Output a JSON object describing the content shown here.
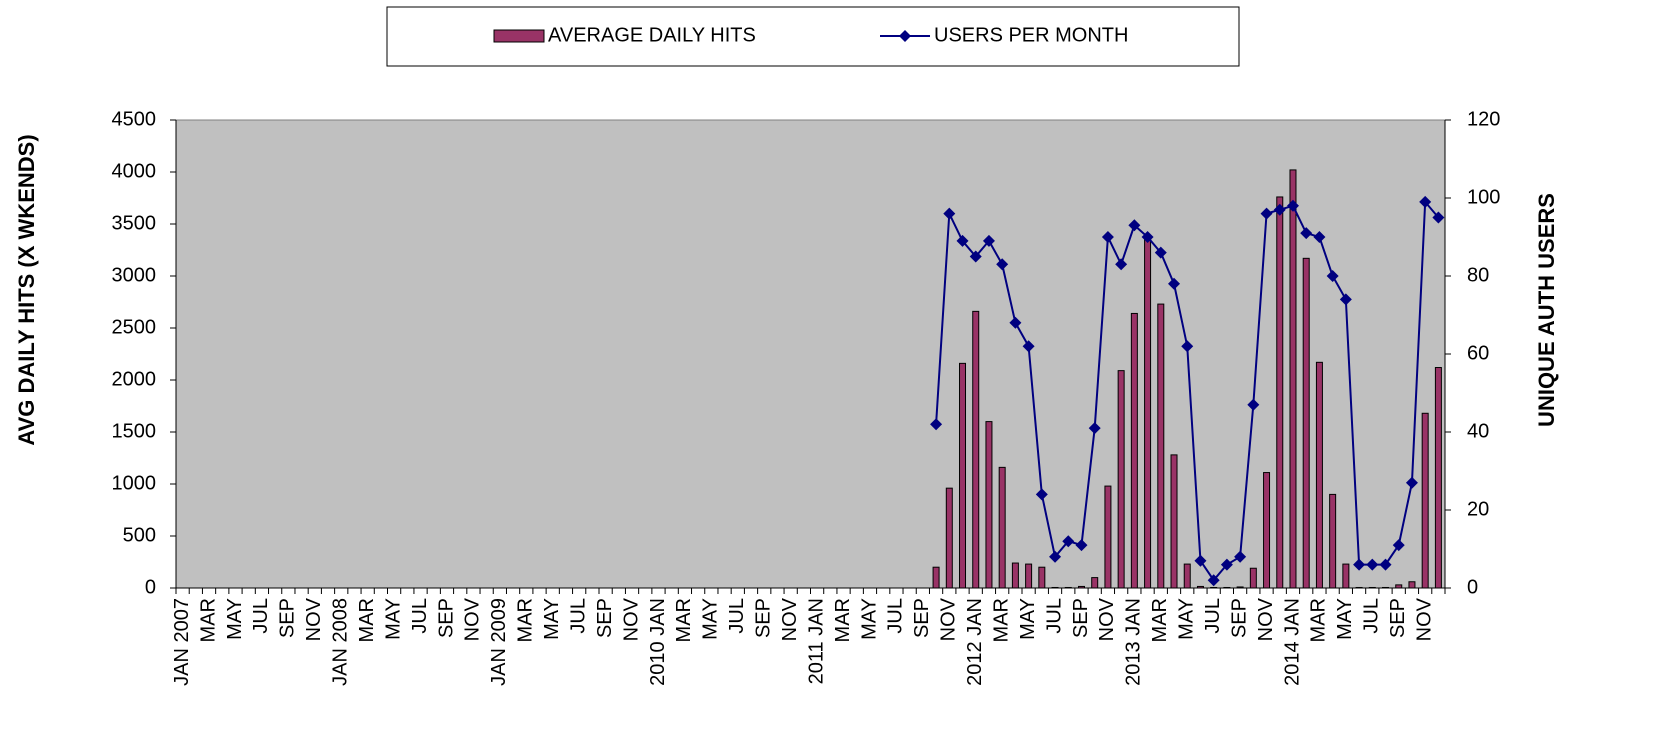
{
  "chart_data": {
    "type": "bar_line",
    "y_label": "AVG DAILY HITS (X WKENDS)",
    "y2_label": "UNIQUE AUTH USERS",
    "categories": [
      "JAN 2007",
      null,
      "MAR",
      null,
      "MAY",
      null,
      "JUL",
      null,
      "SEP",
      null,
      "NOV",
      null,
      "JAN 2008",
      null,
      "MAR",
      null,
      "MAY",
      null,
      "JUL",
      null,
      "SEP",
      null,
      "NOV",
      null,
      "JAN 2009",
      null,
      "MAR",
      null,
      "MAY",
      null,
      "JUL",
      null,
      "SEP",
      null,
      "NOV",
      null,
      "2010 JAN",
      null,
      "MAR",
      null,
      "MAY",
      null,
      "JUL",
      null,
      "SEP",
      null,
      "NOV",
      null,
      "2011 JAN",
      null,
      "MAR",
      null,
      "MAY",
      null,
      "JUL",
      null,
      "SEP",
      null,
      "NOV",
      null,
      "2012 JAN",
      null,
      "MAR",
      null,
      "MAY",
      null,
      "JUL",
      null,
      "SEP",
      null,
      "NOV",
      null,
      "2013 JAN",
      null,
      "MAR",
      null,
      "MAY",
      null,
      "JUL",
      null,
      "SEP",
      null,
      "NOV",
      null,
      "2014 JAN",
      null,
      "MAR",
      null,
      "MAY",
      null,
      "JUL",
      null,
      "SEP",
      null,
      "NOV",
      null
    ],
    "series": [
      {
        "name": "AVERAGE DAILY HITS",
        "color": "#993366",
        "kind": "bar",
        "values": [
          null,
          null,
          null,
          null,
          null,
          null,
          null,
          null,
          null,
          null,
          null,
          null,
          null,
          null,
          null,
          null,
          null,
          null,
          null,
          null,
          null,
          null,
          null,
          null,
          null,
          null,
          null,
          null,
          null,
          null,
          null,
          null,
          null,
          null,
          null,
          null,
          null,
          null,
          null,
          null,
          null,
          null,
          null,
          null,
          null,
          null,
          null,
          null,
          null,
          null,
          null,
          null,
          null,
          null,
          null,
          null,
          null,
          200,
          960,
          2160,
          2660,
          1600,
          1160,
          240,
          230,
          200,
          5,
          5,
          15,
          100,
          980,
          2090,
          2640,
          3380,
          2730,
          1280,
          230,
          15,
          5,
          5,
          10,
          190,
          1110,
          3760,
          4020,
          3170,
          2170,
          900,
          230,
          5,
          5,
          5,
          30,
          60,
          1680,
          2120
        ]
      },
      {
        "name": "USERS PER MONTH",
        "color": "#000080",
        "kind": "line",
        "axis": "y2",
        "values": [
          null,
          null,
          null,
          null,
          null,
          null,
          null,
          null,
          null,
          null,
          null,
          null,
          null,
          null,
          null,
          null,
          null,
          null,
          null,
          null,
          null,
          null,
          null,
          null,
          null,
          null,
          null,
          null,
          null,
          null,
          null,
          null,
          null,
          null,
          null,
          null,
          null,
          null,
          null,
          null,
          null,
          null,
          null,
          null,
          null,
          null,
          null,
          null,
          null,
          null,
          null,
          null,
          null,
          null,
          null,
          null,
          null,
          42,
          96,
          89,
          85,
          89,
          83,
          68,
          62,
          24,
          8,
          12,
          11,
          41,
          90,
          83,
          93,
          90,
          86,
          78,
          62,
          7,
          2,
          6,
          8,
          47,
          96,
          97,
          98,
          91,
          90,
          80,
          74,
          6,
          6,
          6,
          11,
          27,
          99,
          95
        ]
      }
    ],
    "ylim": [
      0,
      4500
    ],
    "yticks": [
      0,
      500,
      1000,
      1500,
      2000,
      2500,
      3000,
      3500,
      4000,
      4500
    ],
    "y2lim": [
      0,
      120
    ],
    "y2ticks": [
      0,
      20,
      40,
      60,
      80,
      100,
      120
    ],
    "legend": "top",
    "background": "#c0c0c0"
  }
}
